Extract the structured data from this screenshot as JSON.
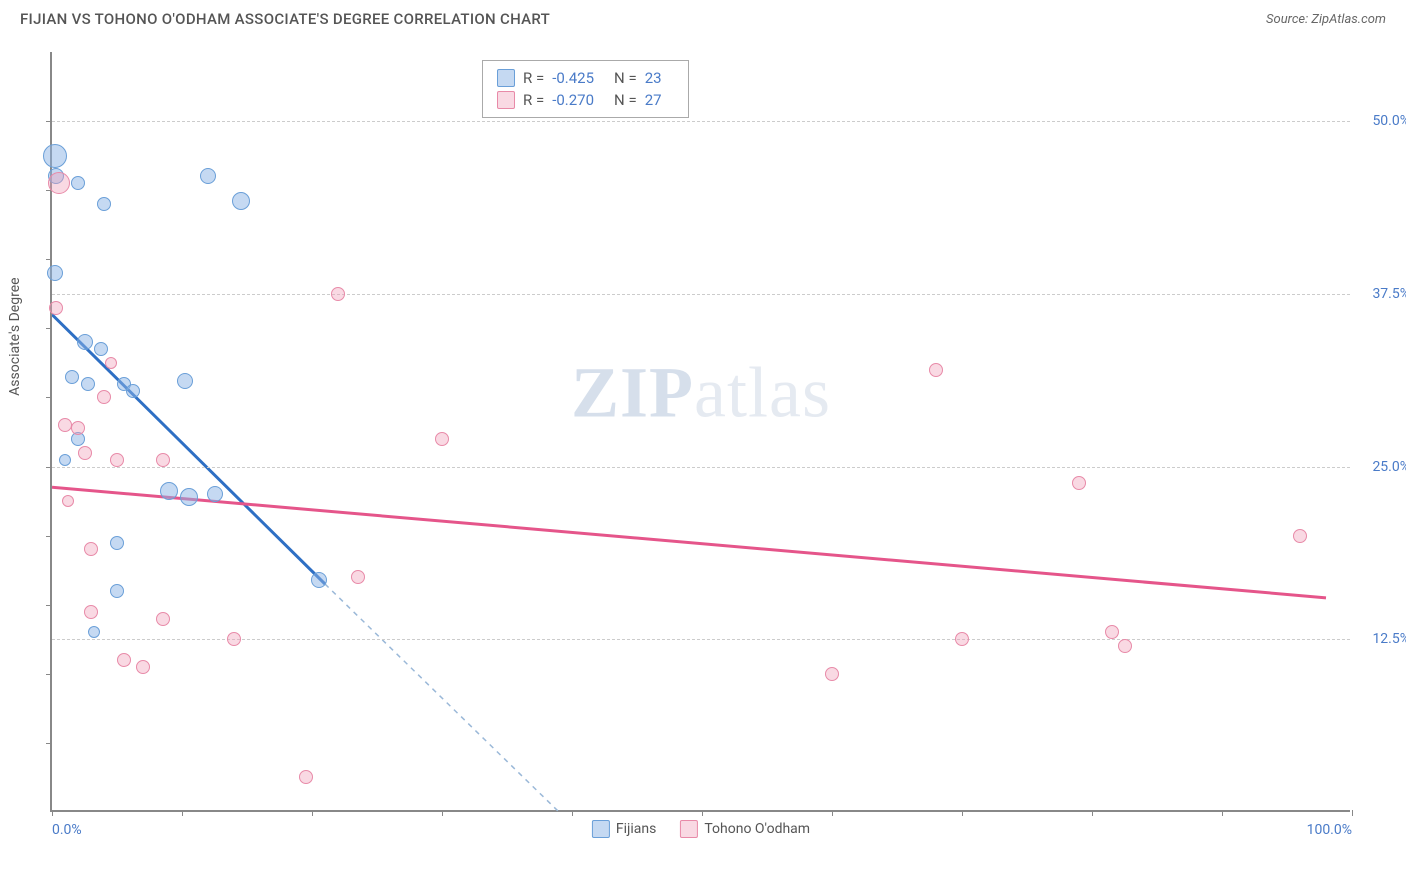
{
  "title": "FIJIAN VS TOHONO O'ODHAM ASSOCIATE'S DEGREE CORRELATION CHART",
  "source": "Source: ZipAtlas.com",
  "y_axis_title": "Associate's Degree",
  "watermark_bold": "ZIP",
  "watermark_rest": "atlas",
  "chart": {
    "type": "scatter",
    "xlim": [
      0,
      100
    ],
    "ylim": [
      0,
      55
    ],
    "y_ticks": [
      {
        "v": 12.5,
        "label": "12.5%"
      },
      {
        "v": 25.0,
        "label": "25.0%"
      },
      {
        "v": 37.5,
        "label": "37.5%"
      },
      {
        "v": 50.0,
        "label": "50.0%"
      }
    ],
    "x_ticks": [
      0,
      10,
      20,
      30,
      40,
      50,
      60,
      70,
      80,
      90,
      100
    ],
    "x_labels": [
      {
        "v": 0,
        "label": "0.0%"
      },
      {
        "v": 100,
        "label": "100.0%"
      }
    ],
    "h_minor_ticks": [
      5,
      10,
      15,
      20,
      25,
      30,
      35,
      40,
      45,
      50
    ],
    "background_color": "#ffffff",
    "grid_color": "#cccccc",
    "axis_color": "#888888",
    "tick_label_color": "#4a7bc8",
    "series": [
      {
        "name": "Fijians",
        "fill": "rgba(140,180,230,0.5)",
        "stroke": "#6a9fd8",
        "line_color": "#2e6fc4",
        "dash_color": "#9ab8d8",
        "R": "-0.425",
        "N": "23",
        "trend": {
          "x1": 0,
          "y1": 36,
          "x2": 21,
          "y2": 16.5,
          "dash_x2": 39,
          "dash_y2": 0
        },
        "points": [
          {
            "x": 0.2,
            "y": 47.5,
            "r": 12
          },
          {
            "x": 0.3,
            "y": 46.0,
            "r": 8
          },
          {
            "x": 2.0,
            "y": 45.5,
            "r": 7
          },
          {
            "x": 4.0,
            "y": 44.0,
            "r": 7
          },
          {
            "x": 12.0,
            "y": 46.0,
            "r": 8
          },
          {
            "x": 14.5,
            "y": 44.2,
            "r": 9
          },
          {
            "x": 0.2,
            "y": 39.0,
            "r": 8
          },
          {
            "x": 2.5,
            "y": 34.0,
            "r": 8
          },
          {
            "x": 3.8,
            "y": 33.5,
            "r": 7
          },
          {
            "x": 1.5,
            "y": 31.5,
            "r": 7
          },
          {
            "x": 2.8,
            "y": 31.0,
            "r": 7
          },
          {
            "x": 5.5,
            "y": 31.0,
            "r": 7
          },
          {
            "x": 6.2,
            "y": 30.5,
            "r": 7
          },
          {
            "x": 10.2,
            "y": 31.2,
            "r": 8
          },
          {
            "x": 2.0,
            "y": 27.0,
            "r": 7
          },
          {
            "x": 9.0,
            "y": 23.2,
            "r": 9
          },
          {
            "x": 10.5,
            "y": 22.8,
            "r": 9
          },
          {
            "x": 12.5,
            "y": 23.0,
            "r": 8
          },
          {
            "x": 5.0,
            "y": 19.5,
            "r": 7
          },
          {
            "x": 20.5,
            "y": 16.8,
            "r": 8
          },
          {
            "x": 5.0,
            "y": 16.0,
            "r": 7
          },
          {
            "x": 3.2,
            "y": 13.0,
            "r": 6
          },
          {
            "x": 1.0,
            "y": 25.5,
            "r": 6
          }
        ]
      },
      {
        "name": "Tohono O'odham",
        "fill": "rgba(240,160,185,0.4)",
        "stroke": "#e88aa8",
        "line_color": "#e5558a",
        "R": "-0.270",
        "N": "27",
        "trend": {
          "x1": 0,
          "y1": 23.5,
          "x2": 98,
          "y2": 15.5
        },
        "points": [
          {
            "x": 0.5,
            "y": 45.5,
            "r": 11
          },
          {
            "x": 22.0,
            "y": 37.5,
            "r": 7
          },
          {
            "x": 0.3,
            "y": 36.5,
            "r": 7
          },
          {
            "x": 68.0,
            "y": 32.0,
            "r": 7
          },
          {
            "x": 4.0,
            "y": 30.0,
            "r": 7
          },
          {
            "x": 1.0,
            "y": 28.0,
            "r": 7
          },
          {
            "x": 2.0,
            "y": 27.8,
            "r": 7
          },
          {
            "x": 30.0,
            "y": 27.0,
            "r": 7
          },
          {
            "x": 2.5,
            "y": 26.0,
            "r": 7
          },
          {
            "x": 5.0,
            "y": 25.5,
            "r": 7
          },
          {
            "x": 8.5,
            "y": 25.5,
            "r": 7
          },
          {
            "x": 79.0,
            "y": 23.8,
            "r": 7
          },
          {
            "x": 96.0,
            "y": 20.0,
            "r": 7
          },
          {
            "x": 3.0,
            "y": 19.0,
            "r": 7
          },
          {
            "x": 23.5,
            "y": 17.0,
            "r": 7
          },
          {
            "x": 3.0,
            "y": 14.5,
            "r": 7
          },
          {
            "x": 8.5,
            "y": 14.0,
            "r": 7
          },
          {
            "x": 70.0,
            "y": 12.5,
            "r": 7
          },
          {
            "x": 81.5,
            "y": 13.0,
            "r": 7
          },
          {
            "x": 82.5,
            "y": 12.0,
            "r": 7
          },
          {
            "x": 14.0,
            "y": 12.5,
            "r": 7
          },
          {
            "x": 5.5,
            "y": 11.0,
            "r": 7
          },
          {
            "x": 7.0,
            "y": 10.5,
            "r": 7
          },
          {
            "x": 60.0,
            "y": 10.0,
            "r": 7
          },
          {
            "x": 19.5,
            "y": 2.5,
            "r": 7
          },
          {
            "x": 4.5,
            "y": 32.5,
            "r": 6
          },
          {
            "x": 1.2,
            "y": 22.5,
            "r": 6
          }
        ]
      }
    ]
  },
  "legend": {
    "label1": "Fijians",
    "label2": "Tohono O'odham"
  }
}
